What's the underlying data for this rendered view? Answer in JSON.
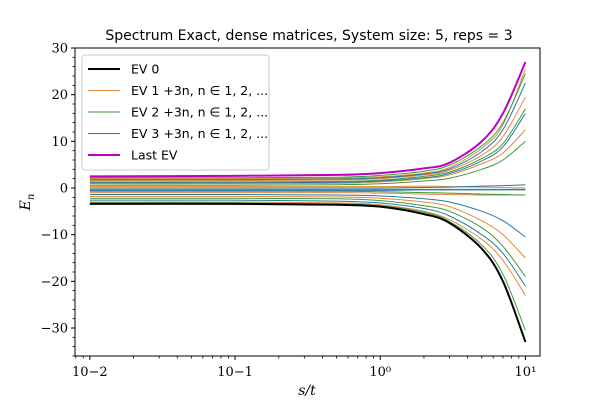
{
  "chart_data": {
    "type": "line",
    "title": "Spectrum Exact, dense matrices, System size: 5, reps = 3",
    "xlabel": "s/t",
    "ylabel": "E_n",
    "xscale": "log",
    "xlim": [
      0.0079,
      12.6
    ],
    "ylim": [
      -36.0,
      30.0
    ],
    "x_ticks": [
      0.01,
      0.1,
      1,
      10
    ],
    "x_tick_labels": [
      "10−2",
      "10−1",
      "10⁰",
      "10¹"
    ],
    "y_ticks": [
      -30,
      -20,
      -10,
      0,
      10,
      20,
      30
    ],
    "y_tick_labels": [
      "−30",
      "−20",
      "−10",
      "0",
      "10",
      "20",
      "30"
    ],
    "legend": {
      "placement": "top-left",
      "entries": [
        {
          "label": "EV 0",
          "color": "#000000"
        },
        {
          "label": "EV 1 +3n, n ∈ 1, 2, ...",
          "color": "#e08a3c"
        },
        {
          "label": "EV 2 +3n, n ∈ 1, 2, ...",
          "color": "#3c9a3c"
        },
        {
          "label": "EV 3 +3n, n ∈ 1, 2, ...",
          "color": "#2a78a8"
        },
        {
          "label": "Last EV",
          "color": "#c000c0"
        }
      ]
    },
    "sample_x": [
      0.01,
      0.1,
      0.5,
      1,
      2,
      3,
      5,
      7,
      10
    ],
    "series": [
      {
        "name": "EV 0",
        "color": "#000000",
        "width": 2.0,
        "values": [
          -3.4,
          -3.4,
          -3.6,
          -4.0,
          -5.6,
          -7.5,
          -13.0,
          -20.0,
          -33.0
        ]
      },
      {
        "name": "Last EV",
        "color": "#c000c0",
        "width": 2.0,
        "values": [
          2.5,
          2.6,
          2.8,
          3.2,
          4.2,
          5.4,
          10.0,
          16.0,
          27.0
        ]
      },
      {
        "color": "#e08a3c",
        "values": [
          -3.0,
          -3.0,
          -3.2,
          -3.6,
          -5.0,
          -6.8,
          -11.0,
          -15.5,
          -23.0
        ]
      },
      {
        "color": "#e08a3c",
        "values": [
          -1.8,
          -1.8,
          -1.9,
          -2.2,
          -3.0,
          -4.0,
          -7.0,
          -10.0,
          -15.0
        ]
      },
      {
        "color": "#e08a3c",
        "values": [
          -1.0,
          -1.0,
          -1.0,
          -1.1,
          -1.3,
          -1.4,
          -1.5,
          -1.5,
          -1.5
        ]
      },
      {
        "color": "#e08a3c",
        "values": [
          0.3,
          0.3,
          0.3,
          0.3,
          0.4,
          0.3,
          0.2,
          0.1,
          0.0
        ]
      },
      {
        "color": "#e08a3c",
        "values": [
          0.9,
          0.9,
          1.0,
          1.3,
          2.0,
          2.8,
          5.2,
          7.5,
          12.5
        ]
      },
      {
        "color": "#e08a3c",
        "values": [
          1.6,
          1.6,
          1.7,
          2.0,
          2.8,
          3.8,
          7.0,
          11.0,
          19.5
        ]
      },
      {
        "color": "#e08a3c",
        "values": [
          2.0,
          2.0,
          2.1,
          2.4,
          3.2,
          4.4,
          8.5,
          13.5,
          25.5
        ]
      },
      {
        "color": "#3c9a3c",
        "values": [
          -3.2,
          -3.2,
          -3.4,
          -3.8,
          -5.2,
          -7.2,
          -12.2,
          -18.5,
          -30.5
        ]
      },
      {
        "color": "#3c9a3c",
        "values": [
          -2.2,
          -2.2,
          -2.3,
          -2.7,
          -3.8,
          -5.0,
          -8.5,
          -12.5,
          -19.0
        ]
      },
      {
        "color": "#3c9a3c",
        "values": [
          -0.7,
          -0.7,
          -0.7,
          -0.8,
          -1.0,
          -1.1,
          -1.3,
          -1.4,
          -1.5
        ]
      },
      {
        "color": "#3c9a3c",
        "values": [
          -0.3,
          -0.3,
          -0.3,
          -0.3,
          -0.3,
          -0.3,
          -0.3,
          -0.3,
          -0.3
        ]
      },
      {
        "color": "#3c9a3c",
        "values": [
          0.6,
          0.6,
          0.7,
          0.9,
          1.5,
          2.1,
          4.0,
          6.0,
          10.0
        ]
      },
      {
        "color": "#3c9a3c",
        "values": [
          1.3,
          1.3,
          1.4,
          1.7,
          2.5,
          3.4,
          6.3,
          9.5,
          17.0
        ]
      },
      {
        "color": "#3c9a3c",
        "values": [
          2.2,
          2.2,
          2.3,
          2.7,
          3.6,
          4.9,
          9.0,
          14.0,
          24.5
        ]
      },
      {
        "color": "#2a78a8",
        "values": [
          -2.6,
          -2.6,
          -2.8,
          -3.2,
          -4.4,
          -6.0,
          -10.0,
          -14.0,
          -21.0
        ]
      },
      {
        "color": "#2a78a8",
        "values": [
          -1.4,
          -1.4,
          -1.5,
          -1.7,
          -2.3,
          -3.0,
          -5.0,
          -7.0,
          -10.5
        ]
      },
      {
        "color": "#2a78a8",
        "values": [
          -0.5,
          -0.5,
          -0.5,
          -0.5,
          -0.4,
          -0.4,
          -0.4,
          -0.4,
          -0.4
        ]
      },
      {
        "color": "#2a78a8",
        "values": [
          0.0,
          0.0,
          0.0,
          0.0,
          0.1,
          0.2,
          0.4,
          0.5,
          0.7
        ]
      },
      {
        "color": "#2a78a8",
        "values": [
          1.1,
          1.1,
          1.2,
          1.5,
          2.2,
          3.1,
          5.8,
          8.8,
          16.0
        ]
      },
      {
        "color": "#2a78a8",
        "values": [
          1.8,
          1.8,
          1.9,
          2.2,
          3.0,
          4.1,
          7.8,
          12.5,
          22.5
        ]
      }
    ]
  }
}
